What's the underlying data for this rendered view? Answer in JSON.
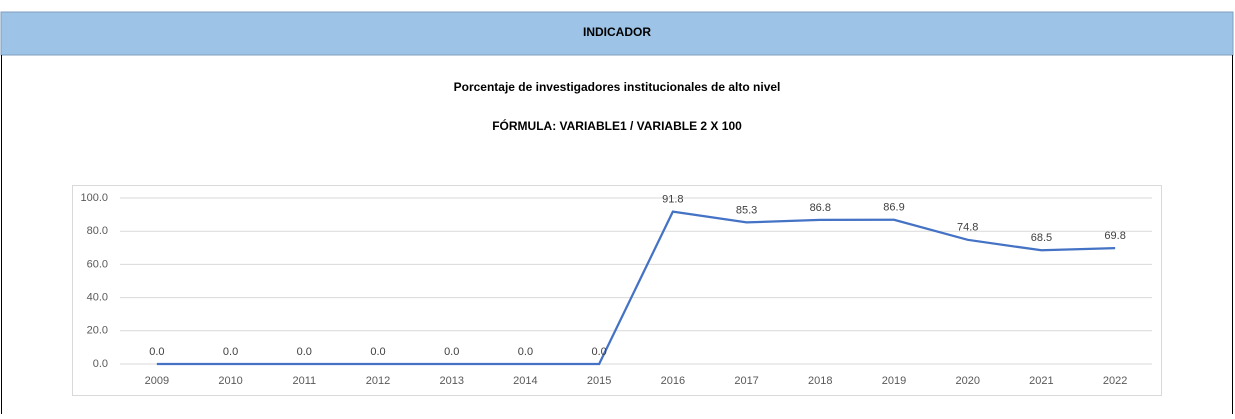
{
  "header": "INDICADOR",
  "chart_data": {
    "type": "line",
    "title": "Porcentaje de investigadores institucionales de alto nivel",
    "subtitle": "FÓRMULA: VARIABLE1 / VARIABLE 2 X 100",
    "categories": [
      "2009",
      "2010",
      "2011",
      "2012",
      "2013",
      "2014",
      "2015",
      "2016",
      "2017",
      "2018",
      "2019",
      "2020",
      "2021",
      "2022"
    ],
    "values": [
      0,
      0,
      0,
      0,
      0,
      0,
      0,
      91.8,
      85.3,
      86.8,
      86.9,
      74.8,
      68.5,
      69.8
    ],
    "value_labels": [
      "0.0",
      "0.0",
      "0.0",
      "0.0",
      "0.0",
      "0.0",
      "0.0",
      "91.8",
      "85.3",
      "86.8",
      "86.9",
      "74.8",
      "68.5",
      "69.8"
    ],
    "color": "#4472c4",
    "ylim": [
      0,
      100
    ],
    "yticks": [
      {
        "value": 0,
        "label": "0.0"
      },
      {
        "value": 20,
        "label": "20.0"
      },
      {
        "value": 40,
        "label": "40.0"
      },
      {
        "value": 60,
        "label": "60.0"
      },
      {
        "value": 80,
        "label": "80.0"
      },
      {
        "value": 100,
        "label": "100.0"
      }
    ],
    "grid": true
  }
}
